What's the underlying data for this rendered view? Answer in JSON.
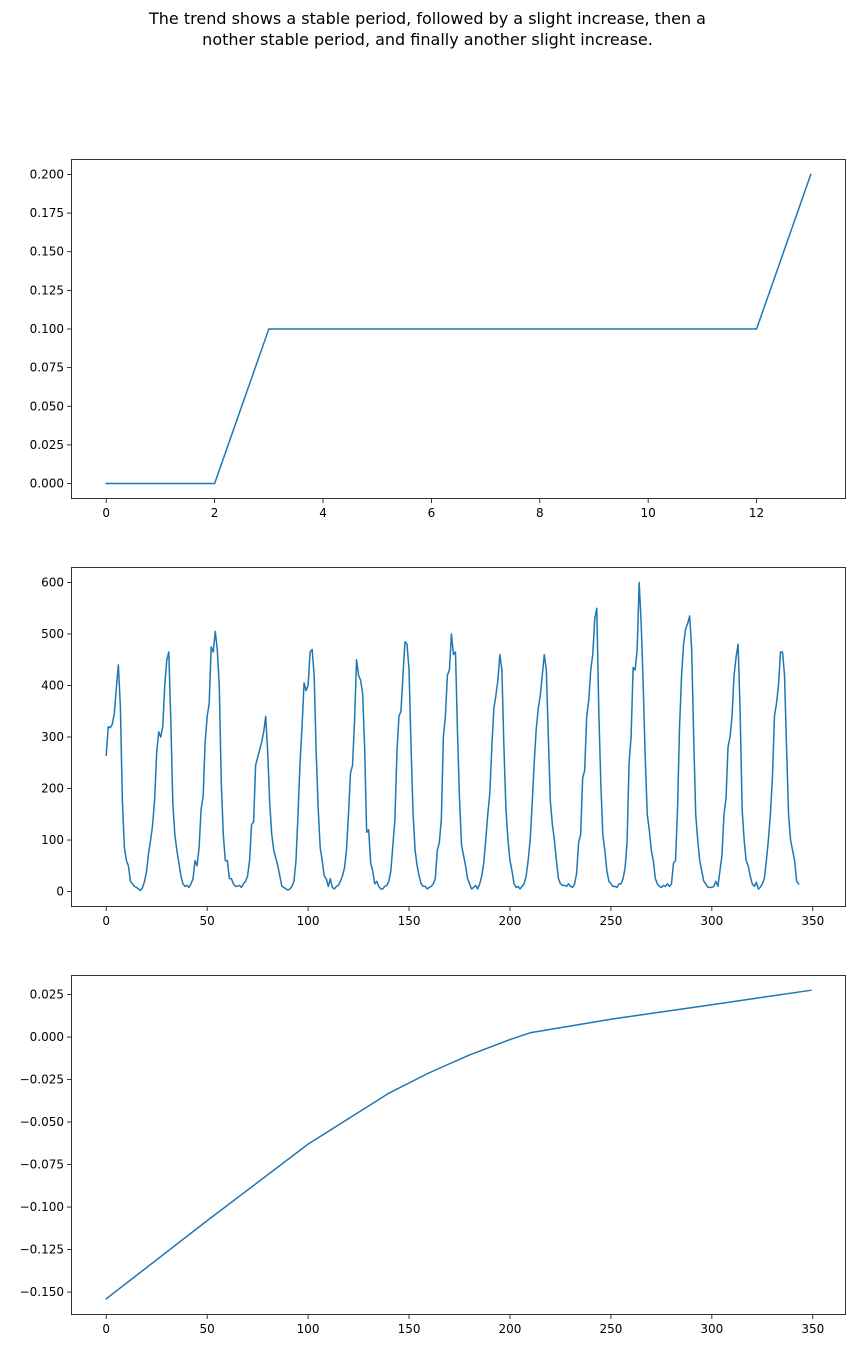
{
  "title_lines": [
    "The trend shows a stable period, followed by a slight increase, then a",
    "nother stable period, and finally another slight increase."
  ],
  "colors": {
    "line": "#1f77b4",
    "axes": "#000000",
    "background": "#ffffff"
  },
  "chart_data": [
    {
      "type": "line",
      "xlim": [
        -0.65,
        13.65
      ],
      "ylim": [
        -0.01,
        0.21
      ],
      "xticks": [
        0,
        2,
        4,
        6,
        8,
        10,
        12
      ],
      "yticks": [
        0.0,
        0.025,
        0.05,
        0.075,
        0.1,
        0.125,
        0.15,
        0.175,
        0.2
      ],
      "ytick_decimals": 3,
      "grid": false,
      "x": [
        0,
        1,
        2,
        3,
        4,
        5,
        6,
        7,
        8,
        9,
        10,
        11,
        12,
        13
      ],
      "y": [
        0,
        0,
        0,
        0.1,
        0.1,
        0.1,
        0.1,
        0.1,
        0.1,
        0.1,
        0.1,
        0.1,
        0.1,
        0.2
      ]
    },
    {
      "type": "line",
      "xlim": [
        -17.45,
        366.45
      ],
      "ylim": [
        -30,
        630
      ],
      "xticks": [
        0,
        50,
        100,
        150,
        200,
        250,
        300,
        350
      ],
      "yticks": [
        0,
        100,
        200,
        300,
        400,
        500,
        600
      ],
      "ytick_decimals": 0,
      "grid": false,
      "x_start": 0,
      "x_step": 1,
      "y": [
        265,
        320,
        318,
        325,
        345,
        395,
        440,
        360,
        175,
        85,
        60,
        50,
        20,
        15,
        10,
        8,
        5,
        2,
        8,
        20,
        40,
        75,
        100,
        130,
        180,
        270,
        310,
        300,
        320,
        400,
        450,
        465,
        330,
        170,
        110,
        80,
        55,
        30,
        15,
        10,
        12,
        8,
        15,
        25,
        60,
        50,
        85,
        160,
        185,
        290,
        340,
        365,
        475,
        465,
        505,
        470,
        400,
        210,
        110,
        60,
        60,
        25,
        25,
        15,
        10,
        10,
        12,
        8,
        15,
        20,
        30,
        60,
        130,
        135,
        245,
        260,
        275,
        290,
        310,
        340,
        270,
        170,
        110,
        80,
        65,
        50,
        30,
        10,
        8,
        5,
        3,
        5,
        10,
        20,
        60,
        150,
        250,
        320,
        405,
        390,
        400,
        465,
        470,
        420,
        270,
        160,
        85,
        60,
        30,
        25,
        10,
        25,
        8,
        5,
        10,
        12,
        20,
        30,
        45,
        80,
        150,
        230,
        245,
        330,
        450,
        420,
        410,
        385,
        280,
        115,
        120,
        55,
        40,
        15,
        20,
        10,
        5,
        5,
        10,
        12,
        20,
        40,
        90,
        140,
        270,
        340,
        350,
        420,
        485,
        480,
        430,
        280,
        150,
        80,
        50,
        30,
        15,
        10,
        10,
        5,
        8,
        10,
        15,
        25,
        80,
        95,
        140,
        300,
        340,
        420,
        430,
        500,
        460,
        465,
        310,
        180,
        90,
        70,
        50,
        25,
        15,
        5,
        8,
        12,
        5,
        15,
        30,
        55,
        100,
        150,
        190,
        280,
        355,
        380,
        410,
        460,
        430,
        280,
        160,
        100,
        60,
        40,
        15,
        8,
        10,
        5,
        10,
        15,
        30,
        60,
        100,
        170,
        250,
        315,
        355,
        380,
        420,
        460,
        430,
        300,
        175,
        130,
        100,
        60,
        25,
        15,
        12,
        12,
        10,
        15,
        10,
        8,
        15,
        35,
        95,
        110,
        220,
        235,
        340,
        370,
        430,
        460,
        530,
        550,
        350,
        210,
        110,
        80,
        40,
        20,
        15,
        10,
        10,
        8,
        15,
        15,
        25,
        45,
        95,
        250,
        300,
        435,
        430,
        470,
        600,
        520,
        400,
        260,
        150,
        120,
        80,
        60,
        25,
        15,
        10,
        8,
        12,
        10,
        15,
        10,
        15,
        55,
        60,
        160,
        320,
        420,
        480,
        510,
        520,
        535,
        470,
        300,
        150,
        100,
        60,
        40,
        20,
        15,
        8,
        8,
        8,
        10,
        20,
        10,
        40,
        70,
        150,
        180,
        280,
        300,
        340,
        420,
        455,
        480,
        350,
        160,
        100,
        60,
        50,
        30,
        15,
        10,
        18,
        5,
        8,
        15,
        25,
        60,
        100,
        150,
        220,
        340,
        365,
        400,
        465,
        465,
        420,
        280,
        150,
        100,
        80,
        60,
        20,
        15
      ]
    },
    {
      "type": "line",
      "xlim": [
        -17.45,
        366.45
      ],
      "ylim": [
        -0.1635,
        0.0365
      ],
      "xticks": [
        0,
        50,
        100,
        150,
        200,
        250,
        300,
        350
      ],
      "yticks": [
        -0.15,
        -0.125,
        -0.1,
        -0.075,
        -0.05,
        -0.025,
        0.0,
        0.025
      ],
      "ytick_decimals": 3,
      "grid": false,
      "x": [
        0,
        50,
        100,
        140,
        160,
        180,
        200,
        210,
        250,
        300,
        349
      ],
      "y": [
        -0.154,
        -0.108,
        -0.063,
        -0.033,
        -0.021,
        -0.0105,
        -0.0015,
        0.0025,
        0.0105,
        0.019,
        0.0275
      ]
    }
  ]
}
